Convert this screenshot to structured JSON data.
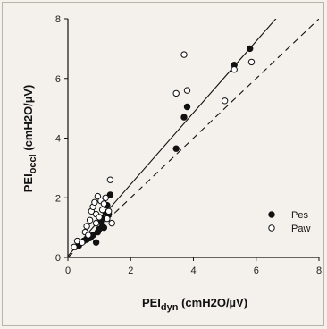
{
  "chart_data": {
    "type": "scatter",
    "xlabel": {
      "main": "PEI",
      "sub": "dyn",
      "rest": " (cmH2O/µV)"
    },
    "ylabel": {
      "main": "PEI",
      "sub": "occl",
      "rest": " (cmH2O/µV)"
    },
    "xlim": [
      0,
      8
    ],
    "ylim": [
      0,
      8
    ],
    "xticks": [
      "0",
      "2",
      "4",
      "6",
      "8"
    ],
    "yticks": [
      "0",
      "2",
      "4",
      "6",
      "8"
    ],
    "grid": false,
    "legend_position": "bottom-right",
    "series": [
      {
        "name": "Pes",
        "marker": "filled-circle",
        "color": "#111111",
        "points": [
          [
            0.35,
            0.4
          ],
          [
            0.5,
            0.55
          ],
          [
            0.6,
            0.6
          ],
          [
            0.75,
            0.7
          ],
          [
            0.8,
            0.75
          ],
          [
            0.9,
            0.5
          ],
          [
            0.95,
            0.85
          ],
          [
            1.0,
            0.95
          ],
          [
            1.05,
            1.2
          ],
          [
            1.1,
            1.3
          ],
          [
            1.15,
            1.0
          ],
          [
            1.2,
            1.5
          ],
          [
            1.3,
            1.45
          ],
          [
            1.35,
            2.1
          ],
          [
            1.25,
            1.75
          ],
          [
            1.1,
            1.05
          ],
          [
            0.7,
            0.65
          ],
          [
            3.45,
            3.65
          ],
          [
            3.7,
            4.7
          ],
          [
            3.8,
            5.05
          ],
          [
            5.3,
            6.45
          ],
          [
            5.8,
            7.0
          ]
        ]
      },
      {
        "name": "Paw",
        "marker": "open-circle",
        "color": "#111111",
        "points": [
          [
            0.2,
            0.35
          ],
          [
            0.3,
            0.55
          ],
          [
            0.45,
            0.5
          ],
          [
            0.55,
            0.85
          ],
          [
            0.6,
            1.05
          ],
          [
            0.7,
            1.25
          ],
          [
            0.75,
            1.55
          ],
          [
            0.8,
            1.7
          ],
          [
            0.85,
            1.85
          ],
          [
            0.9,
            1.45
          ],
          [
            0.95,
            2.05
          ],
          [
            1.0,
            1.35
          ],
          [
            1.05,
            1.9
          ],
          [
            1.1,
            1.6
          ],
          [
            1.15,
            1.8
          ],
          [
            1.2,
            2.0
          ],
          [
            1.25,
            1.3
          ],
          [
            1.3,
            1.55
          ],
          [
            1.35,
            2.6
          ],
          [
            1.4,
            1.15
          ],
          [
            0.65,
            0.75
          ],
          [
            0.9,
            1.15
          ],
          [
            3.45,
            5.5
          ],
          [
            3.7,
            6.8
          ],
          [
            3.8,
            5.6
          ],
          [
            5.0,
            5.25
          ],
          [
            5.3,
            6.3
          ],
          [
            5.85,
            6.55
          ]
        ]
      }
    ],
    "reference_lines": [
      {
        "kind": "identity",
        "style": "dashed",
        "x": [
          0,
          8
        ],
        "y": [
          0,
          8
        ]
      },
      {
        "kind": "regression",
        "style": "solid",
        "x": [
          0,
          8
        ],
        "y": [
          0.05,
          9.65
        ]
      }
    ]
  }
}
